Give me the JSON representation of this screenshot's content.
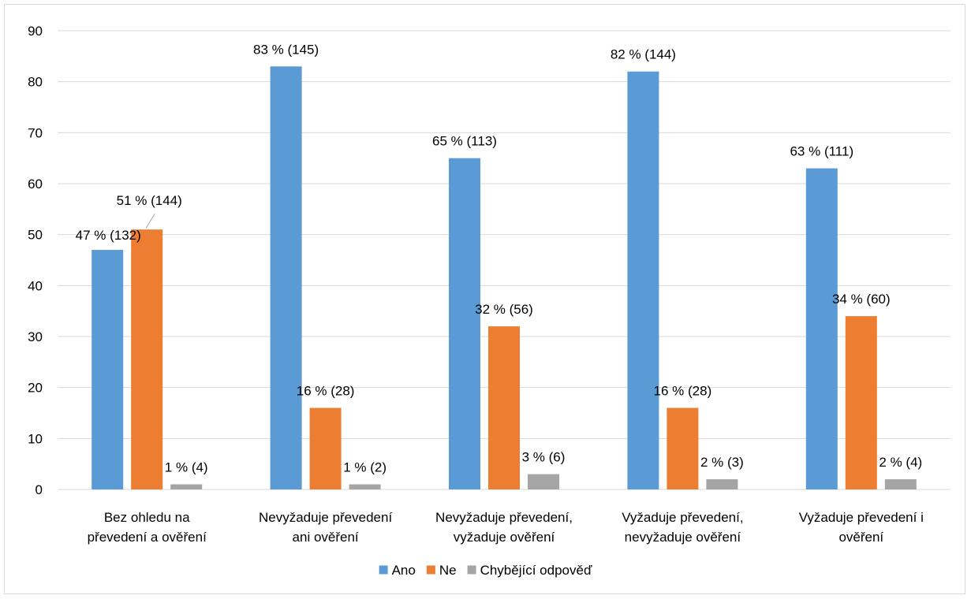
{
  "chart_data": {
    "type": "bar",
    "categories": [
      [
        "Bez ohledu na",
        "převedení a ověření"
      ],
      [
        "Nevyžaduje převedení",
        "ani ověření"
      ],
      [
        "Nevyžaduje převedení,",
        "vyžaduje ověření"
      ],
      [
        "Vyžaduje převedení,",
        "nevyžaduje ověření"
      ],
      [
        "Vyžaduje převedení i",
        "ověření"
      ]
    ],
    "series": [
      {
        "name": "Ano",
        "color": "#5b9bd5",
        "values": [
          47,
          83,
          65,
          82,
          63
        ],
        "labels": [
          "47 % (132)",
          "83 % (145)",
          "65 % (113)",
          "82 % (144)",
          "63 % (111)"
        ]
      },
      {
        "name": "Ne",
        "color": "#ed7d31",
        "values": [
          51,
          16,
          32,
          16,
          34
        ],
        "labels": [
          "51 % (144)",
          "16 % (28)",
          "32 % (56)",
          "16 % (28)",
          "34 % (60)"
        ]
      },
      {
        "name": "Chybějící odpověď",
        "color": "#a5a5a5",
        "values": [
          1,
          1,
          3,
          2,
          2
        ],
        "labels": [
          "1 % (4)",
          "1 % (2)",
          "3 % (6)",
          "2 % (3)",
          "2 % (4)"
        ]
      }
    ],
    "ylim": [
      0,
      90
    ],
    "yticks": [
      0,
      10,
      20,
      30,
      40,
      50,
      60,
      70,
      80,
      90
    ],
    "grid": true,
    "legend_position": "bottom",
    "title": "",
    "xlabel": "",
    "ylabel": ""
  }
}
